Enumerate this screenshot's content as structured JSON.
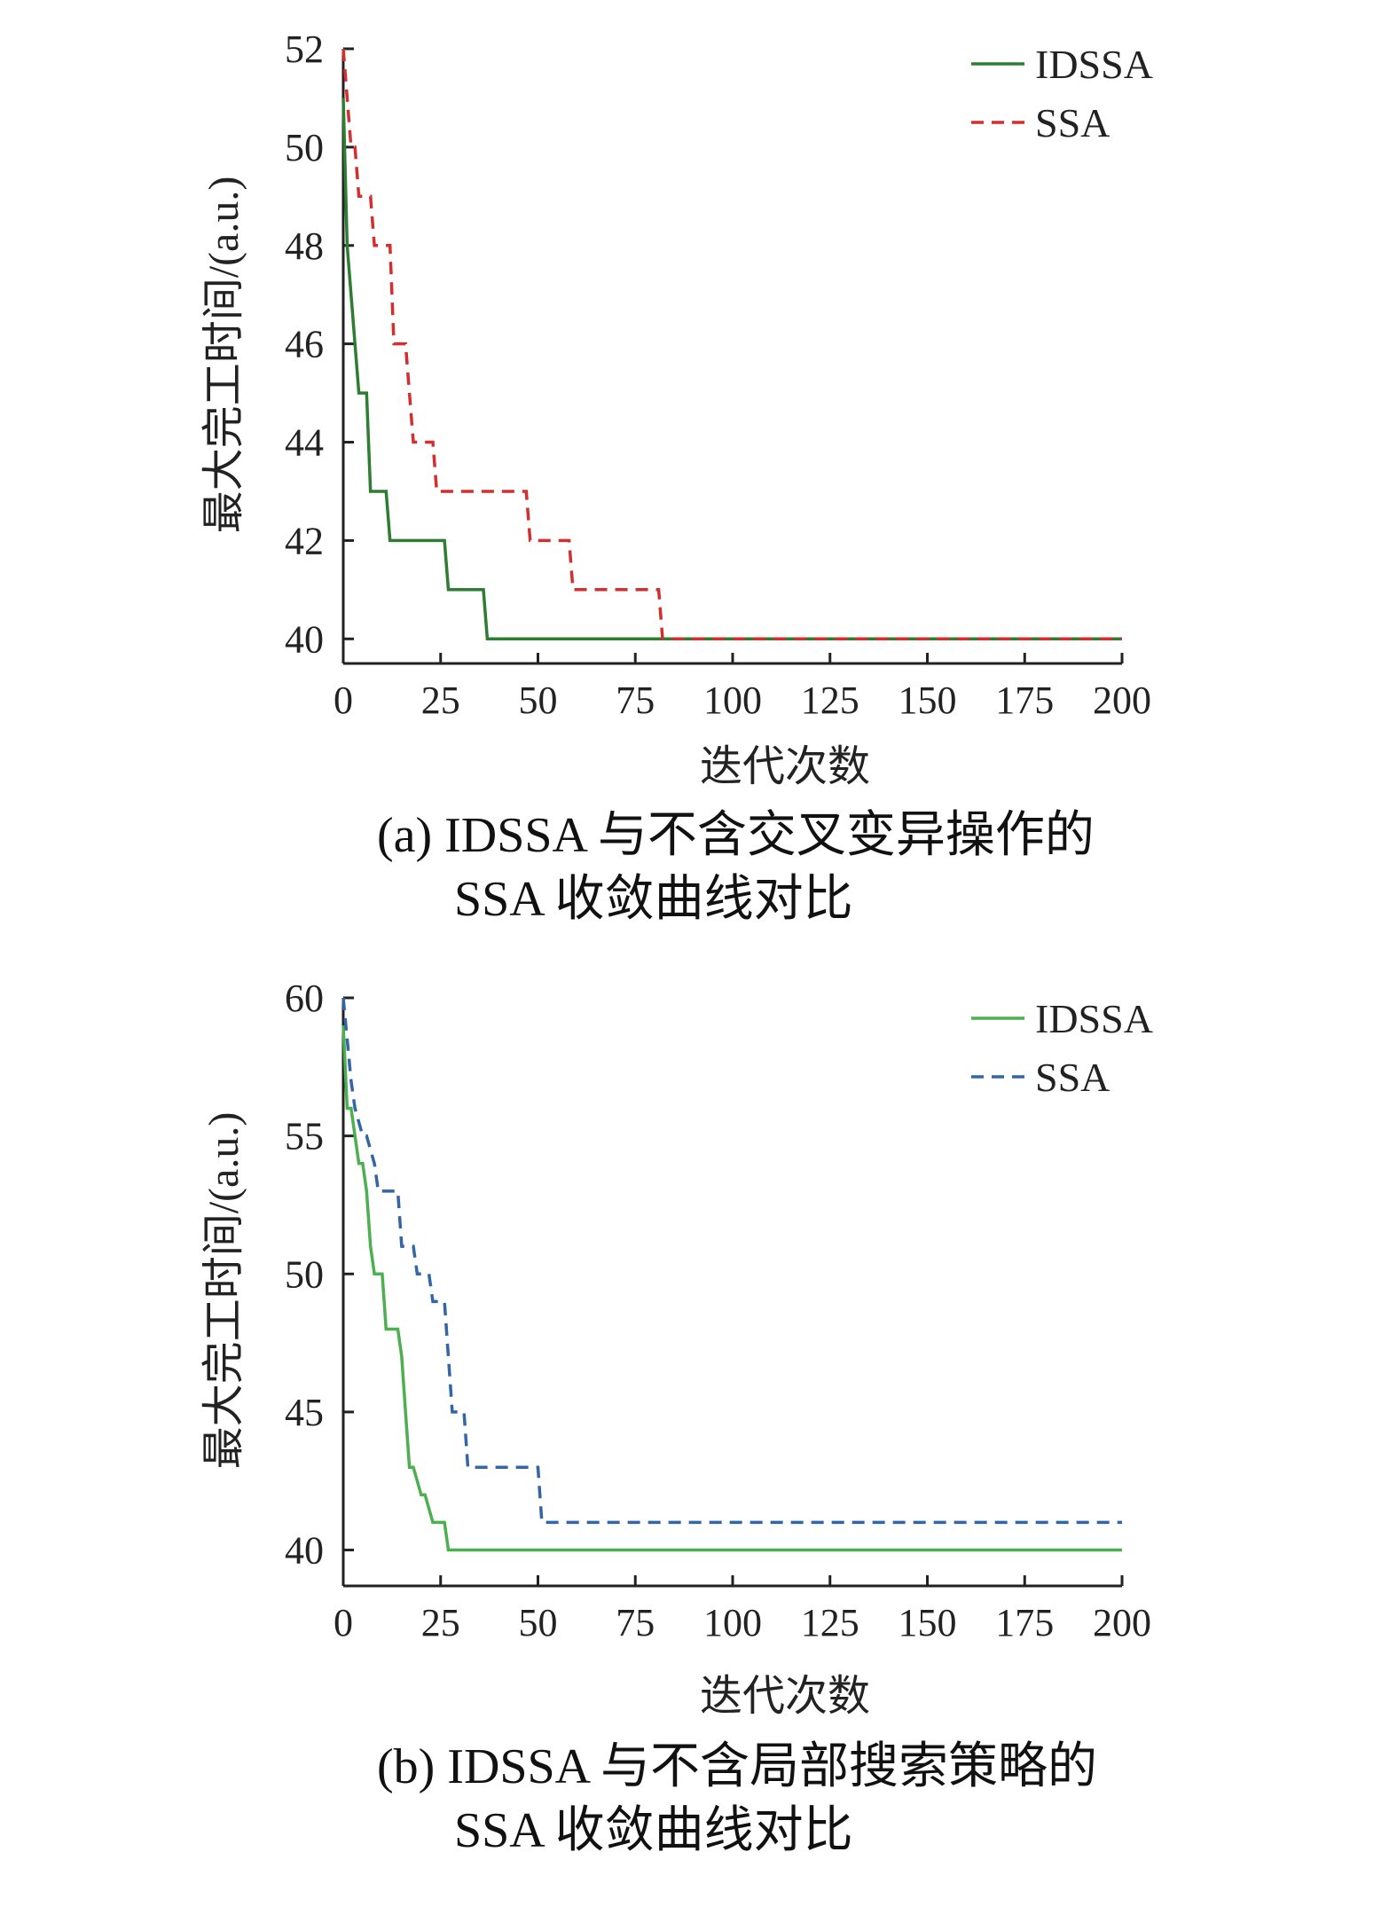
{
  "chart_data": [
    {
      "type": "line",
      "xlabel": "迭代次数",
      "ylabel": "最大完工时间/(a.u.)",
      "xlim": [
        0,
        200
      ],
      "ylim": [
        39.5,
        52
      ],
      "xticks": [
        0,
        25,
        50,
        75,
        100,
        125,
        150,
        175,
        200
      ],
      "yticks": [
        40,
        42,
        44,
        46,
        48,
        50,
        52
      ],
      "legend_position": "top-right",
      "caption_line1": "(a) IDSSA 与不含交叉变异操作的",
      "caption_line2": "SSA 收敛曲线对比",
      "series": [
        {
          "name": "IDSSA",
          "color": "#2e7d32",
          "dash": "solid",
          "x": [
            0,
            1,
            2,
            3,
            4,
            5,
            6,
            7,
            11,
            12,
            26,
            27,
            36,
            37,
            200
          ],
          "y": [
            51,
            48,
            47,
            46,
            45,
            45,
            45,
            43,
            43,
            42,
            42,
            41,
            41,
            40,
            40
          ]
        },
        {
          "name": "SSA",
          "color": "#d32f2f",
          "dash": "dashed",
          "x": [
            0,
            1,
            2,
            3,
            4,
            7,
            8,
            12,
            13,
            16,
            17,
            18,
            23,
            24,
            26,
            47,
            48,
            58,
            59,
            81,
            82,
            200
          ],
          "y": [
            52,
            51,
            50,
            50,
            49,
            49,
            48,
            48,
            46,
            46,
            45,
            44,
            44,
            43,
            43,
            43,
            42,
            42,
            41,
            41,
            40,
            40
          ]
        }
      ]
    },
    {
      "type": "line",
      "xlabel": "迭代次数",
      "ylabel": "最大完工时间/(a.u.)",
      "xlim": [
        0,
        200
      ],
      "ylim": [
        38.7,
        60
      ],
      "xticks": [
        0,
        25,
        50,
        75,
        100,
        125,
        150,
        175,
        200
      ],
      "yticks": [
        40,
        45,
        50,
        55,
        60
      ],
      "legend_position": "top-right",
      "caption_line1": "(b) IDSSA 与不含局部搜索策略的",
      "caption_line2": "SSA 收敛曲线对比",
      "series": [
        {
          "name": "IDSSA",
          "color": "#4caf50",
          "dash": "solid",
          "x": [
            0,
            1,
            2,
            3,
            4,
            5,
            6,
            7,
            8,
            10,
            11,
            14,
            15,
            16,
            17,
            18,
            20,
            21,
            23,
            24,
            26,
            27,
            200
          ],
          "y": [
            59,
            56,
            56,
            55,
            54,
            54,
            53,
            51,
            50,
            50,
            48,
            48,
            47,
            45,
            43,
            43,
            42,
            42,
            41,
            41,
            41,
            40,
            40
          ]
        },
        {
          "name": "SSA",
          "color": "#3465a4",
          "dash": "dashed",
          "x": [
            0,
            2,
            3,
            5,
            6,
            8,
            9,
            14,
            15,
            18,
            19,
            22,
            23,
            26,
            27,
            28,
            31,
            32,
            50,
            51,
            200
          ],
          "y": [
            60,
            57,
            56,
            55,
            55,
            54,
            53,
            53,
            51,
            51,
            50,
            50,
            49,
            49,
            47,
            45,
            45,
            43,
            43,
            41,
            41
          ]
        }
      ]
    }
  ]
}
